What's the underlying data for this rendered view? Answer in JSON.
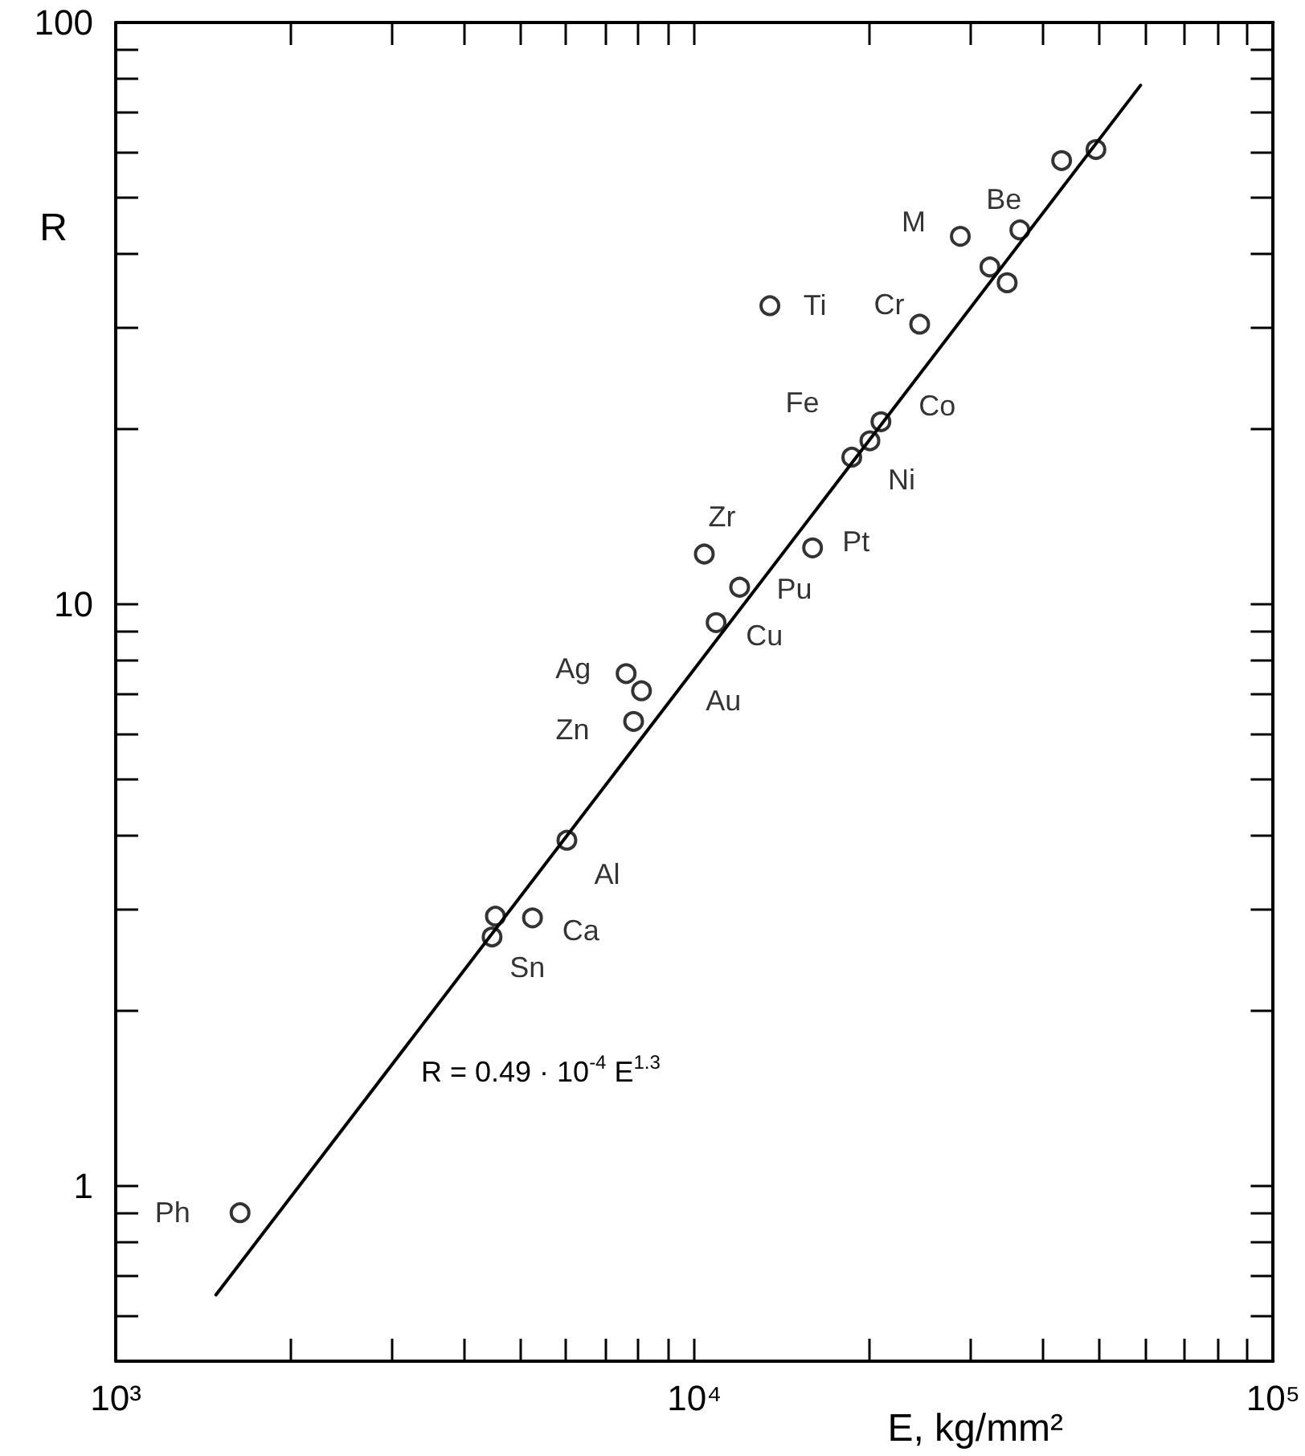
{
  "chart_data": {
    "type": "scatter",
    "xlabel": "E, kg/mm²",
    "ylabel": "R",
    "log": "xy",
    "grid": false,
    "xlim": [
      1000,
      100000
    ],
    "ylim": [
      0.5,
      100
    ],
    "xticks": [
      {
        "value": 1000,
        "label": "10³"
      },
      {
        "value": 2000,
        "label": null
      },
      {
        "value": 3000,
        "label": null
      },
      {
        "value": 4000,
        "label": null
      },
      {
        "value": 5000,
        "label": null
      },
      {
        "value": 6000,
        "label": null
      },
      {
        "value": 7000,
        "label": null
      },
      {
        "value": 8000,
        "label": null
      },
      {
        "value": 9000,
        "label": null
      },
      {
        "value": 10000,
        "label": "10⁴"
      },
      {
        "value": 20000,
        "label": null
      },
      {
        "value": 30000,
        "label": null
      },
      {
        "value": 40000,
        "label": null
      },
      {
        "value": 50000,
        "label": null
      },
      {
        "value": 60000,
        "label": null
      },
      {
        "value": 70000,
        "label": null
      },
      {
        "value": 80000,
        "label": null
      },
      {
        "value": 90000,
        "label": null
      },
      {
        "value": 100000,
        "label": "10⁵"
      }
    ],
    "yticks": [
      {
        "value": 0.6,
        "label": null
      },
      {
        "value": 0.7,
        "label": null
      },
      {
        "value": 0.8,
        "label": null
      },
      {
        "value": 0.9,
        "label": null
      },
      1,
      {
        "value": 2,
        "label": null
      },
      {
        "value": 3,
        "label": null
      },
      {
        "value": 4,
        "label": null
      },
      {
        "value": 5,
        "label": null
      },
      {
        "value": 6,
        "label": null
      },
      {
        "value": 7,
        "label": null
      },
      {
        "value": 8,
        "label": null
      },
      {
        "value": 9,
        "label": null
      },
      10,
      {
        "value": 20,
        "label": null
      },
      {
        "value": 30,
        "label": null
      },
      {
        "value": 40,
        "label": null
      },
      {
        "value": 50,
        "label": null
      },
      {
        "value": 60,
        "label": null
      },
      {
        "value": 70,
        "label": null
      },
      {
        "value": 80,
        "label": null
      },
      {
        "value": 90,
        "label": null
      },
      100
    ],
    "series": [
      {
        "type": "scatter",
        "color": "#000000",
        "x": [
          1640,
          4470,
          4530,
          5250,
          6020,
          7850,
          7620,
          8100,
          10900,
          11970,
          16000,
          10400,
          20100,
          21000,
          18700,
          24500,
          13500,
          28800,
          32400,
          34700,
          36500,
          43100,
          49400
        ],
        "values": [
          0.9,
          2.68,
          2.91,
          2.89,
          3.93,
          6.29,
          7.6,
          7.1,
          9.3,
          10.7,
          12.5,
          12.2,
          19.1,
          20.6,
          17.9,
          30.3,
          32.6,
          42.9,
          38.0,
          35.7,
          44.0,
          57.9,
          60.5
        ]
      },
      {
        "type": "line",
        "color": "#000000",
        "x": [
          1490,
          59000
        ],
        "values": [
          0.65,
          78
        ]
      }
    ],
    "annotations": [
      {
        "text": "Ph",
        "x": 1640,
        "y": 0.9
      },
      {
        "text": "Sn",
        "x": 4470,
        "y": 2.68
      },
      {
        "text": "Ca",
        "x": 5250,
        "y": 2.89
      },
      {
        "text": "Al",
        "x": 6020,
        "y": 3.93
      },
      {
        "text": "Zn",
        "x": 7850,
        "y": 6.29
      },
      {
        "text": "Ag",
        "x": 7620,
        "y": 7.6
      },
      {
        "text": "Au",
        "x": 8100,
        "y": 7.1
      },
      {
        "text": "Cu",
        "x": 10900,
        "y": 9.3
      },
      {
        "text": "Pu",
        "x": 11970,
        "y": 10.7
      },
      {
        "text": "Pt",
        "x": 16000,
        "y": 12.5
      },
      {
        "text": "Zr",
        "x": 10400,
        "y": 12.2
      },
      {
        "text": "Ni",
        "x": 18700,
        "y": 17.9
      },
      {
        "text": "Fe",
        "x": 20100,
        "y": 19.1
      },
      {
        "text": "Co",
        "x": 21000,
        "y": 20.6
      },
      {
        "text": "Cr",
        "x": 24500,
        "y": 30.3
      },
      {
        "text": "Ti",
        "x": 13500,
        "y": 32.6
      },
      {
        "text": "M",
        "x": 28800,
        "y": 42.9
      },
      {
        "text": "Be",
        "x": 36500,
        "y": 44.0
      },
      "R = 0.49 · 10$^{-4}$ E$^{1.3}$"
    ]
  }
}
